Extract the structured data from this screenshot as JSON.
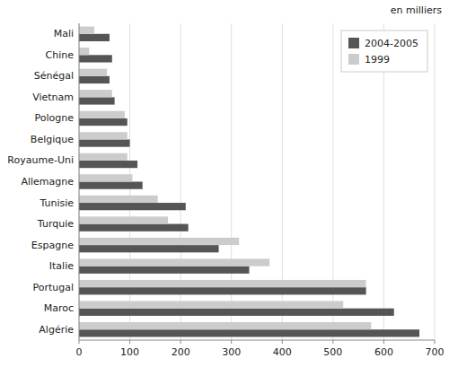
{
  "chart_data": {
    "type": "bar",
    "orientation": "horizontal",
    "annotation": "en milliers",
    "categories": [
      "Mali",
      "Chine",
      "Sénégal",
      "Vietnam",
      "Pologne",
      "Belgique",
      "Royaume-Uni",
      "Allemagne",
      "Tunisie",
      "Turquie",
      "Espagne",
      "Italie",
      "Portugal",
      "Maroc",
      "Algérie"
    ],
    "series": [
      {
        "name": "2004-2005",
        "color": "#555555",
        "values": [
          60,
          65,
          60,
          70,
          95,
          100,
          115,
          125,
          210,
          215,
          275,
          335,
          565,
          620,
          670
        ]
      },
      {
        "name": "1999",
        "color": "#cccccc",
        "values": [
          30,
          20,
          55,
          65,
          90,
          95,
          95,
          105,
          155,
          175,
          315,
          375,
          565,
          520,
          575
        ]
      }
    ],
    "xlim": [
      0,
      700
    ],
    "xticks": [
      0,
      100,
      200,
      300,
      400,
      500,
      600,
      700
    ],
    "grid": true,
    "legend": "upper right"
  }
}
